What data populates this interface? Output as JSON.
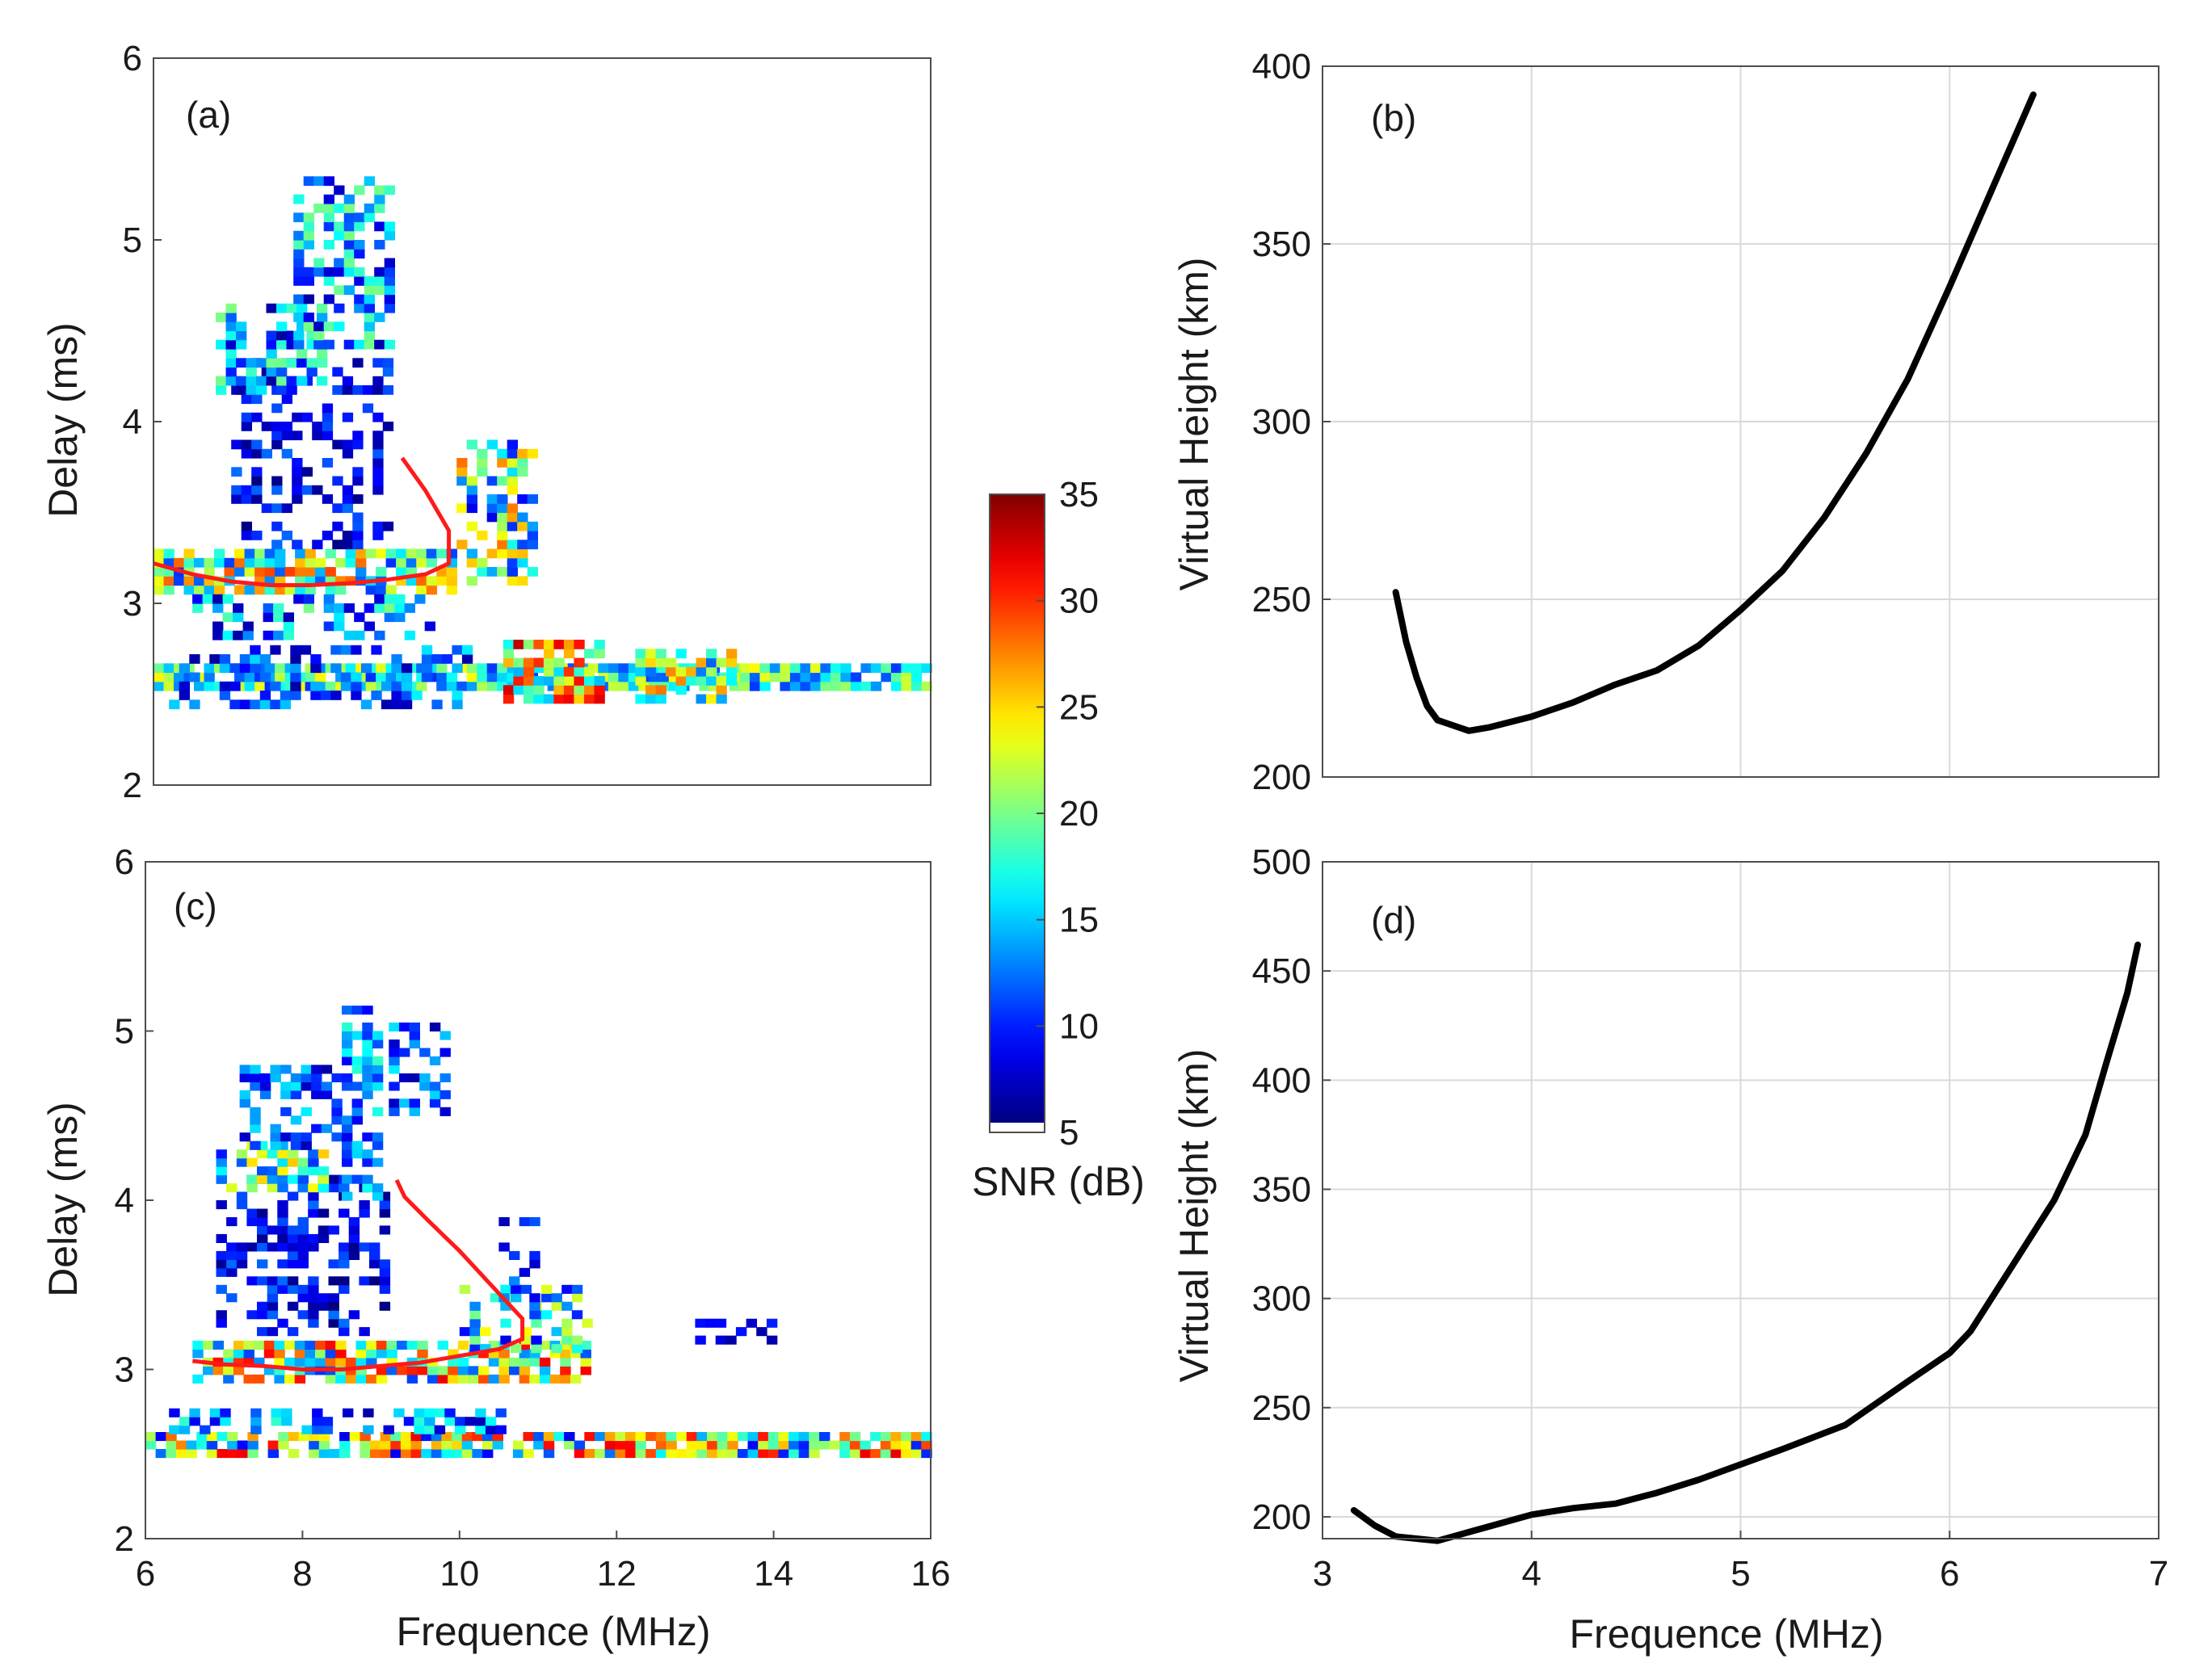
{
  "colors": {
    "trace": "#ff1a1a",
    "curve": "#000000",
    "grid": "#d9d9d9",
    "frame": "#4d4d4d"
  },
  "colorbar": {
    "label": "SNR (dB)",
    "min": 5,
    "max": 35,
    "ticks": [
      5,
      10,
      15,
      20,
      25,
      30,
      35
    ],
    "colormap": "jet"
  },
  "chart_data": [
    {
      "panel": "a",
      "type": "heatmap",
      "label": "(a)",
      "xlabel": "",
      "ylabel": "Delay (ms)",
      "xlim": [
        6,
        16
      ],
      "ylim": [
        2,
        6
      ],
      "xticks": [],
      "yticks": [
        2,
        3,
        4,
        5,
        6
      ],
      "echo_clusters": [
        {
          "f": [
            6.0,
            16.0
          ],
          "d": [
            2.52,
            2.62
          ],
          "snr": [
            10,
            24
          ],
          "fill": 0.85
        },
        {
          "f": [
            10.5,
            11.8
          ],
          "d": [
            2.45,
            2.75
          ],
          "snr": [
            14,
            34
          ],
          "fill": 0.8
        },
        {
          "f": [
            12.2,
            13.4
          ],
          "d": [
            2.45,
            2.72
          ],
          "snr": [
            10,
            28
          ],
          "fill": 0.7
        },
        {
          "f": [
            6.2,
            10.0
          ],
          "d": [
            2.42,
            2.75
          ],
          "snr": [
            6,
            16
          ],
          "fill": 0.35
        },
        {
          "f": [
            6.0,
            9.8
          ],
          "d": [
            3.05,
            3.28
          ],
          "snr": [
            10,
            30
          ],
          "fill": 0.75
        },
        {
          "f": [
            6.5,
            9.5
          ],
          "d": [
            2.8,
            3.0
          ],
          "snr": [
            6,
            20
          ],
          "fill": 0.4
        },
        {
          "f": [
            9.9,
            10.9
          ],
          "d": [
            3.1,
            3.85
          ],
          "snr": [
            8,
            28
          ],
          "fill": 0.45
        },
        {
          "f": [
            7.0,
            9.0
          ],
          "d": [
            3.3,
            4.3
          ],
          "snr": [
            5,
            12
          ],
          "fill": 0.35
        },
        {
          "f": [
            6.8,
            8.2
          ],
          "d": [
            4.15,
            4.6
          ],
          "snr": [
            6,
            20
          ],
          "fill": 0.6
        },
        {
          "f": [
            7.8,
            9.0
          ],
          "d": [
            4.4,
            5.3
          ],
          "snr": [
            6,
            20
          ],
          "fill": 0.55
        }
      ],
      "trace": {
        "x": [
          6.0,
          6.5,
          7.0,
          7.5,
          8.0,
          8.5,
          9.0,
          9.5,
          9.8,
          9.8,
          9.5,
          9.2
        ],
        "y": [
          3.22,
          3.16,
          3.12,
          3.1,
          3.1,
          3.11,
          3.13,
          3.16,
          3.22,
          3.4,
          3.62,
          3.8
        ]
      }
    },
    {
      "panel": "b",
      "type": "line",
      "label": "(b)",
      "xlabel": "",
      "ylabel": "Virtual Height (km)",
      "xlim": [
        3,
        7
      ],
      "ylim": [
        200,
        400
      ],
      "xticks": [],
      "yticks": [
        200,
        250,
        300,
        350,
        400
      ],
      "x": [
        3.35,
        3.4,
        3.45,
        3.5,
        3.55,
        3.6,
        3.7,
        3.8,
        4.0,
        4.2,
        4.4,
        4.6,
        4.8,
        5.0,
        5.2,
        5.4,
        5.6,
        5.8,
        6.0,
        6.2,
        6.4
      ],
      "y": [
        252,
        238,
        228,
        220,
        216,
        215,
        213,
        214,
        217,
        221,
        226,
        230,
        237,
        247,
        258,
        273,
        291,
        312,
        338,
        365,
        392
      ]
    },
    {
      "panel": "c",
      "type": "heatmap",
      "label": "(c)",
      "xlabel": "Frequence (MHz)",
      "ylabel": "Delay (ms)",
      "xlim": [
        6,
        16
      ],
      "ylim": [
        2,
        6
      ],
      "xticks": [
        6,
        8,
        10,
        12,
        14,
        16
      ],
      "yticks": [
        2,
        3,
        4,
        5,
        6
      ],
      "echo_clusters": [
        {
          "f": [
            6.0,
            16.0
          ],
          "d": [
            2.48,
            2.62
          ],
          "snr": [
            8,
            32
          ],
          "fill": 0.85
        },
        {
          "f": [
            6.3,
            10.5
          ],
          "d": [
            2.62,
            2.72
          ],
          "snr": [
            6,
            18
          ],
          "fill": 0.45
        },
        {
          "f": [
            6.6,
            11.6
          ],
          "d": [
            2.92,
            3.12
          ],
          "snr": [
            10,
            32
          ],
          "fill": 0.75
        },
        {
          "f": [
            10.0,
            11.6
          ],
          "d": [
            3.1,
            3.45
          ],
          "snr": [
            8,
            24
          ],
          "fill": 0.45
        },
        {
          "f": [
            6.9,
            9.0
          ],
          "d": [
            3.2,
            4.1
          ],
          "snr": [
            5,
            12
          ],
          "fill": 0.4
        },
        {
          "f": [
            6.9,
            8.3
          ],
          "d": [
            4.05,
            4.3
          ],
          "snr": [
            8,
            26
          ],
          "fill": 0.6
        },
        {
          "f": [
            7.2,
            8.4
          ],
          "d": [
            4.3,
            4.75
          ],
          "snr": [
            6,
            16
          ],
          "fill": 0.5
        },
        {
          "f": [
            8.5,
            8.9
          ],
          "d": [
            4.0,
            5.1
          ],
          "snr": [
            8,
            18
          ],
          "fill": 0.55
        },
        {
          "f": [
            9.1,
            9.8
          ],
          "d": [
            4.5,
            5.0
          ],
          "snr": [
            6,
            16
          ],
          "fill": 0.45
        },
        {
          "f": [
            10.5,
            11.0
          ],
          "d": [
            3.3,
            3.9
          ],
          "snr": [
            6,
            14
          ],
          "fill": 0.3
        },
        {
          "f": [
            13.0,
            14.0
          ],
          "d": [
            3.15,
            3.25
          ],
          "snr": [
            6,
            10
          ],
          "fill": 0.5
        }
      ],
      "trace": {
        "x": [
          6.6,
          7.0,
          7.5,
          8.0,
          8.5,
          9.0,
          9.5,
          10.0,
          10.5,
          10.8,
          10.8,
          10.4,
          10.0,
          9.6,
          9.3,
          9.2
        ],
        "y": [
          3.05,
          3.03,
          3.02,
          3.0,
          3.0,
          3.02,
          3.04,
          3.08,
          3.12,
          3.18,
          3.3,
          3.5,
          3.7,
          3.88,
          4.02,
          4.12
        ]
      }
    },
    {
      "panel": "d",
      "type": "line",
      "label": "(d)",
      "xlabel": "Frequence (MHz)",
      "ylabel": "Virtual Height (km)",
      "xlim": [
        3,
        7
      ],
      "ylim": [
        190,
        500
      ],
      "xticks": [
        3,
        4,
        5,
        6,
        7
      ],
      "yticks": [
        200,
        250,
        300,
        350,
        400,
        450,
        500
      ],
      "x": [
        3.15,
        3.25,
        3.35,
        3.45,
        3.55,
        3.7,
        3.85,
        4.0,
        4.2,
        4.4,
        4.6,
        4.8,
        5.0,
        5.2,
        5.5,
        5.8,
        6.0,
        6.1,
        6.3,
        6.5,
        6.65,
        6.75,
        6.85,
        6.9
      ],
      "y": [
        203,
        196,
        191,
        190,
        189,
        193,
        197,
        201,
        204,
        206,
        211,
        217,
        224,
        231,
        242,
        262,
        275,
        285,
        315,
        345,
        375,
        408,
        440,
        462
      ]
    }
  ]
}
